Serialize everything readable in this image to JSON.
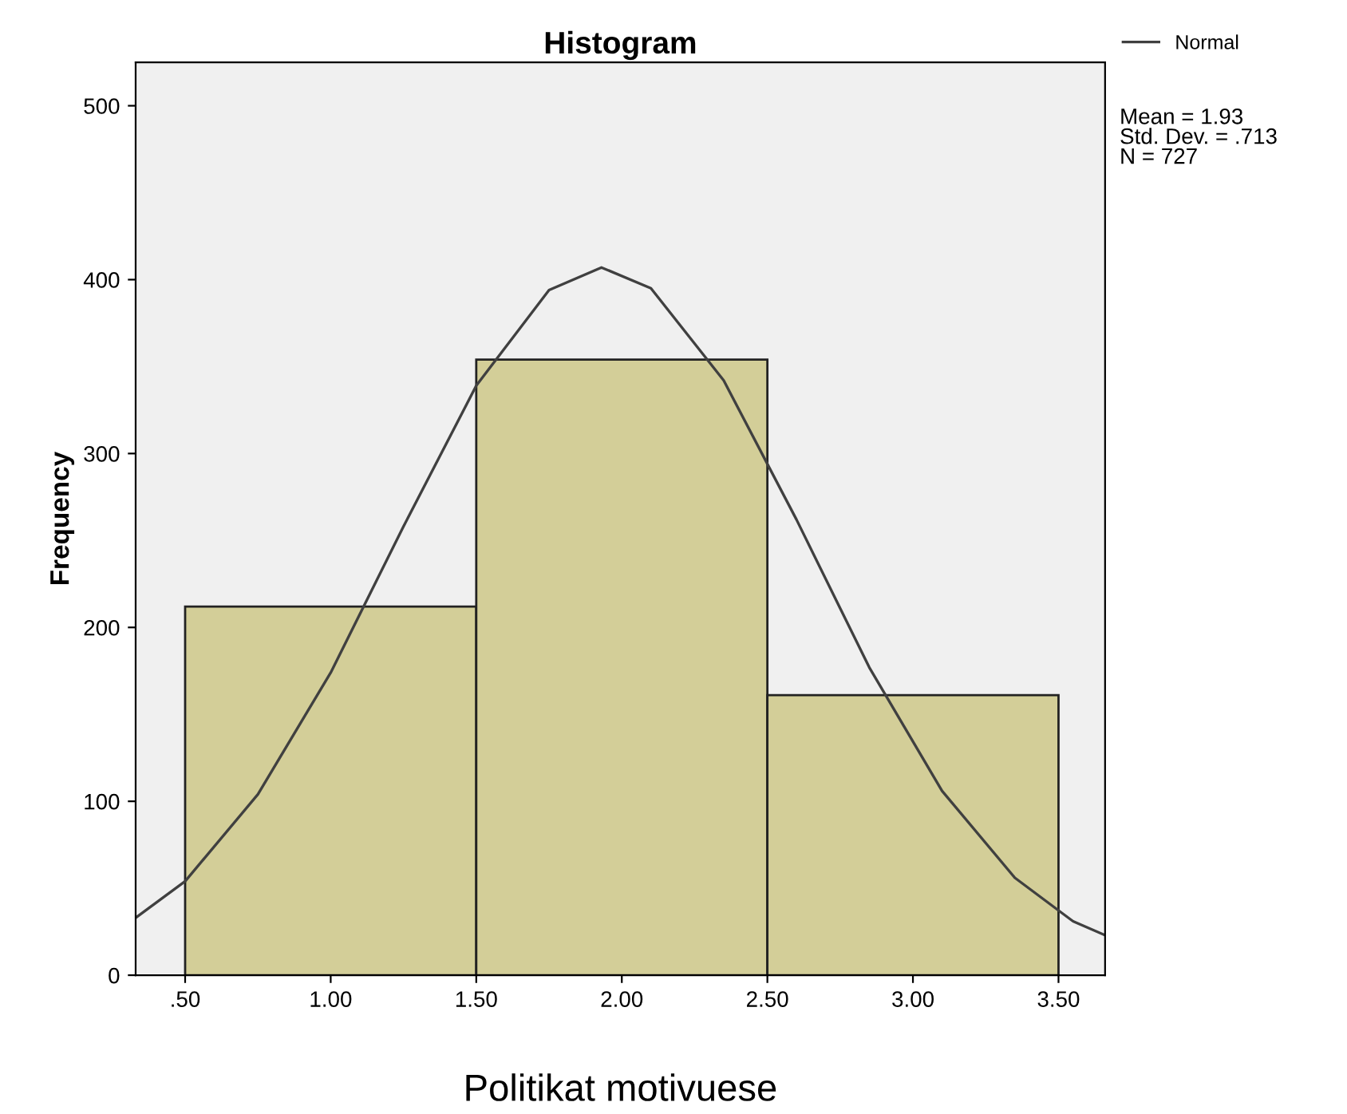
{
  "chart_data": {
    "type": "histogram",
    "title": "Histogram",
    "xlabel": "Politikat motivuese",
    "ylabel": "Frequency",
    "bins": [
      0.5,
      1.5,
      2.5,
      3.5
    ],
    "values": [
      212,
      354,
      161
    ],
    "color": "#d3ce98",
    "series": [
      {
        "type": "line",
        "name": "Normal",
        "color": "#404040",
        "x": [
          0.33,
          0.5,
          0.75,
          1.0,
          1.25,
          1.5,
          1.75,
          1.93,
          2.1,
          2.35,
          2.6,
          2.85,
          3.1,
          3.35,
          3.55,
          3.66
        ],
        "values": [
          33,
          54,
          104,
          174,
          258,
          339,
          394,
          407,
          395,
          342,
          262,
          177,
          106,
          56,
          31,
          23
        ]
      }
    ],
    "annotations": [
      "Mean = 1.93",
      "Std. Dev. = .713",
      "N = 727"
    ],
    "xlim": [
      0.33,
      3.66
    ],
    "ylim": [
      0,
      525
    ],
    "xticks": [
      {
        "value": 0.5,
        "label": ".50"
      },
      {
        "value": 1.0,
        "label": "1.00"
      },
      {
        "value": 1.5,
        "label": "1.50"
      },
      {
        "value": 2.0,
        "label": "2.00"
      },
      {
        "value": 2.5,
        "label": "2.50"
      },
      {
        "value": 3.0,
        "label": "3.00"
      },
      {
        "value": 3.5,
        "label": "3.50"
      }
    ],
    "yticks": [
      0,
      100,
      200,
      300,
      400,
      500
    ],
    "legend": "top right",
    "grid": false
  }
}
